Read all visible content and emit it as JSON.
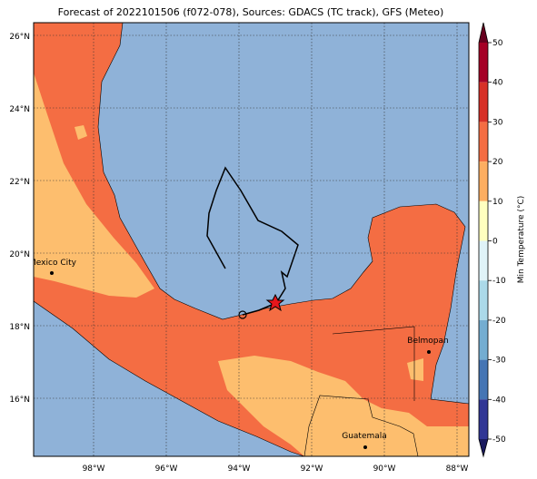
{
  "map": {
    "title": "Forecast of 2022101506 (f072-078), Sources: GDACS (TC track), GFS (Meteo)",
    "lat_ticks": [
      {
        "value": 26,
        "label": "26°N"
      },
      {
        "value": 24,
        "label": "24°N"
      },
      {
        "value": 22,
        "label": "22°N"
      },
      {
        "value": 20,
        "label": "20°N"
      },
      {
        "value": 18,
        "label": "18°N"
      },
      {
        "value": 16,
        "label": "16°N"
      }
    ],
    "lon_ticks": [
      {
        "value": -98,
        "label": "98°W"
      },
      {
        "value": -96,
        "label": "96°W"
      },
      {
        "value": -94,
        "label": "94°W"
      },
      {
        "value": -92,
        "label": "92°W"
      },
      {
        "value": -90,
        "label": "90°W"
      },
      {
        "value": -88,
        "label": "88°W"
      }
    ],
    "cities": [
      {
        "name": "Mexico City"
      },
      {
        "name": "Belmopan"
      },
      {
        "name": "Guatemala"
      }
    ],
    "colorbar": {
      "label": "Min Temperature (°C)",
      "ticks": [
        50,
        40,
        30,
        20,
        10,
        0,
        -10,
        -20,
        -30,
        -40,
        -50
      ]
    }
  }
}
